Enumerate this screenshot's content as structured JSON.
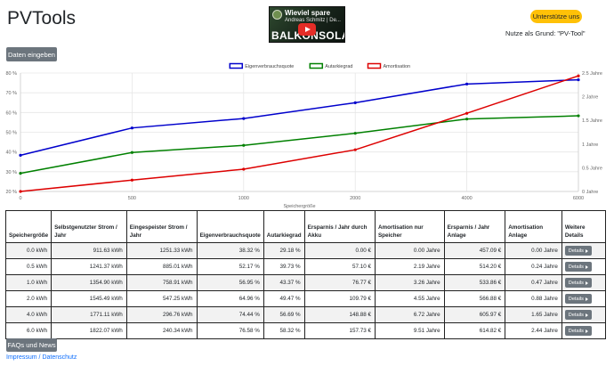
{
  "app": {
    "title": "PVTools"
  },
  "video": {
    "channel_title": "Wieviel spare",
    "subtitle": "Andreas Schmitz | De...",
    "brand_text": "BALKONSOLAR"
  },
  "support": {
    "button_label": "Unterstütze uns",
    "note": "Nutze als Grund: \"PV-Tool\""
  },
  "actions": {
    "enter_data_label": "Daten eingeben",
    "faq_label": "FAQs und News"
  },
  "footer": {
    "link_text": "Impressum / Datenschutz"
  },
  "chart_data": {
    "type": "line",
    "categories": [
      "0",
      "500",
      "1000",
      "2000",
      "4000",
      "6000"
    ],
    "xlabel": "Speichergröße",
    "y_left": {
      "ylim": [
        20,
        80
      ],
      "ticks": [
        "20 %",
        "30 %",
        "40 %",
        "50 %",
        "60 %",
        "70 %",
        "80 %"
      ]
    },
    "y_right": {
      "ylim": [
        0,
        2.5
      ],
      "ticks": [
        "0 Jahre",
        "0.5 Jahre",
        "1 Jahre",
        "1.5 Jahre",
        "2 Jahre",
        "2.5 Jahre"
      ]
    },
    "legend_position": "top",
    "series": [
      {
        "name": "Eigenverbrauchsquote",
        "axis": "left",
        "color": "#0000cc",
        "values": [
          38.32,
          52.17,
          56.95,
          64.96,
          74.44,
          76.58
        ]
      },
      {
        "name": "Autarkiegrad",
        "axis": "left",
        "color": "#008000",
        "values": [
          29.18,
          39.73,
          43.37,
          49.47,
          56.69,
          58.32
        ]
      },
      {
        "name": "Amortisation",
        "axis": "right",
        "color": "#dd0000",
        "values": [
          0.0,
          0.24,
          0.47,
          0.88,
          1.65,
          2.44
        ]
      }
    ],
    "grid": true
  },
  "table": {
    "headers": [
      "Speichergröße",
      "Selbstgenutzter Strom / Jahr",
      "Eingespeister Strom / Jahr",
      "Eigenverbrauchsquote",
      "Autarkiegrad",
      "Ersparnis / Jahr durch Akku",
      "Amortisation nur Speicher",
      "Ersparnis / Jahr Anlage",
      "Amortisation Anlage",
      "Weitere Details"
    ],
    "details_label": "Details",
    "rows": [
      [
        "0.0 kWh",
        "911.63 kWh",
        "1251.33 kWh",
        "38.32 %",
        "29.18 %",
        "0.00 €",
        "0.00 Jahre",
        "457.09 €",
        "0.00 Jahre"
      ],
      [
        "0.5 kWh",
        "1241.37 kWh",
        "885.01 kWh",
        "52.17 %",
        "39.73 %",
        "57.10 €",
        "2.19 Jahre",
        "514.20 €",
        "0.24 Jahre"
      ],
      [
        "1.0 kWh",
        "1354.90 kWh",
        "758.91 kWh",
        "56.95 %",
        "43.37 %",
        "76.77 €",
        "3.26 Jahre",
        "533.86 €",
        "0.47 Jahre"
      ],
      [
        "2.0 kWh",
        "1545.49 kWh",
        "547.25 kWh",
        "64.96 %",
        "49.47 %",
        "109.79 €",
        "4.55 Jahre",
        "566.88 €",
        "0.88 Jahre"
      ],
      [
        "4.0 kWh",
        "1771.11 kWh",
        "296.76 kWh",
        "74.44 %",
        "56.69 %",
        "148.88 €",
        "6.72 Jahre",
        "605.97 €",
        "1.65 Jahre"
      ],
      [
        "6.0 kWh",
        "1822.07 kWh",
        "240.34 kWh",
        "76.58 %",
        "58.32 %",
        "157.73 €",
        "9.51 Jahre",
        "614.82 €",
        "2.44 Jahre"
      ]
    ]
  }
}
